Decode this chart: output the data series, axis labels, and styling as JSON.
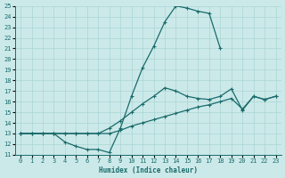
{
  "background_color": "#cce9e9",
  "grid_color": "#aad4d4",
  "line_color": "#1a6b6b",
  "xlim": [
    -0.5,
    23.5
  ],
  "ylim": [
    11,
    25
  ],
  "xlabel": "Humidex (Indice chaleur)",
  "xticks": [
    0,
    1,
    2,
    3,
    4,
    5,
    6,
    7,
    8,
    9,
    10,
    11,
    12,
    13,
    14,
    15,
    16,
    17,
    18,
    19,
    20,
    21,
    22,
    23
  ],
  "yticks": [
    11,
    12,
    13,
    14,
    15,
    16,
    17,
    18,
    19,
    20,
    21,
    22,
    23,
    24,
    25
  ],
  "line1_x": [
    0,
    1,
    2,
    3,
    4,
    5,
    6,
    7,
    8,
    9,
    10,
    11,
    12,
    13,
    14,
    15,
    16,
    17,
    18
  ],
  "line1_y": [
    13,
    13,
    13,
    13,
    12.2,
    11.8,
    11.5,
    11.5,
    11.2,
    13.5,
    16.5,
    19.2,
    21.2,
    23.5,
    25.0,
    24.8,
    24.5,
    24.3,
    21.0
  ],
  "line2_x": [
    0,
    1,
    2,
    3,
    4,
    5,
    6,
    7,
    8,
    9,
    10,
    11,
    12,
    13,
    14,
    15,
    16,
    17,
    18,
    19,
    20,
    21,
    22,
    23
  ],
  "line2_y": [
    13,
    13,
    13,
    13,
    13,
    13,
    13,
    13,
    13.5,
    14.2,
    15.0,
    15.8,
    16.5,
    17.3,
    17.0,
    16.5,
    16.3,
    16.2,
    16.5,
    17.2,
    15.2,
    16.5,
    16.2,
    16.5
  ],
  "line3_x": [
    0,
    1,
    2,
    3,
    4,
    5,
    6,
    7,
    8,
    9,
    10,
    11,
    12,
    13,
    14,
    15,
    16,
    17,
    18,
    19,
    20,
    21,
    22,
    23
  ],
  "line3_y": [
    13,
    13,
    13,
    13,
    13,
    13,
    13,
    13,
    13,
    13.3,
    13.7,
    14.0,
    14.3,
    14.6,
    14.9,
    15.2,
    15.5,
    15.7,
    16.0,
    16.3,
    15.3,
    16.5,
    16.2,
    16.5
  ]
}
